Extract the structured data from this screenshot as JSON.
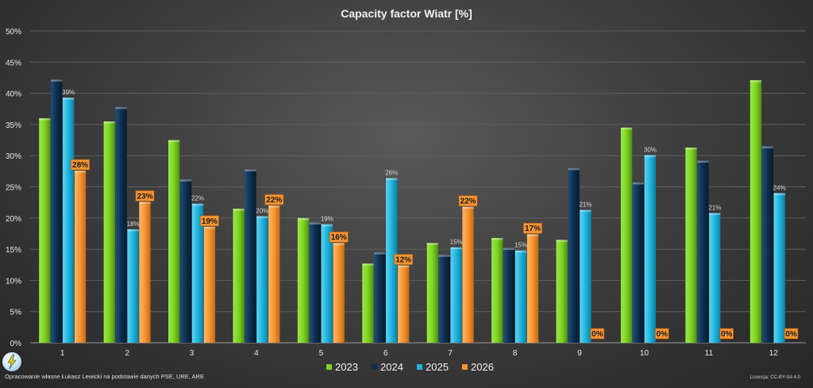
{
  "chart_data": {
    "type": "bar",
    "title": "Capacity factor Wiatr [%]",
    "categories": [
      "1",
      "2",
      "3",
      "4",
      "5",
      "6",
      "7",
      "8",
      "9",
      "10",
      "11",
      "12"
    ],
    "ylim": [
      0,
      50
    ],
    "y_ticks": [
      "0%",
      "5%",
      "10%",
      "15%",
      "20%",
      "25%",
      "30%",
      "35%",
      "40%",
      "45%",
      "50%"
    ],
    "grid": true,
    "legend_position": "bottom",
    "series": [
      {
        "name": "2023",
        "color": "#7ed321",
        "values": [
          36.0,
          35.5,
          32.5,
          21.5,
          20.0,
          12.7,
          16.0,
          16.8,
          16.5,
          34.5,
          31.3,
          42.1
        ]
      },
      {
        "name": "2024",
        "color": "#0e2f4f",
        "values": [
          42.2,
          37.8,
          26.2,
          27.8,
          19.3,
          14.5,
          14.1,
          15.2,
          28.0,
          25.7,
          29.2,
          31.5
        ]
      },
      {
        "name": "2025",
        "color": "#1fb4dc",
        "values": [
          39.3,
          18.2,
          22.3,
          20.3,
          19.0,
          26.4,
          15.3,
          14.8,
          21.3,
          30.1,
          20.8,
          24.0
        ],
        "labels": [
          "39%",
          "18%",
          "22%",
          "20%",
          "19%",
          "26%",
          "15%",
          "15%",
          "21%",
          "30%",
          "21%",
          "24%"
        ]
      },
      {
        "name": "2026",
        "color": "#f79433",
        "values": [
          27.6,
          22.6,
          18.6,
          22.0,
          16.0,
          12.4,
          21.8,
          17.4,
          0,
          0,
          0,
          0
        ],
        "labels": [
          "28%",
          "23%",
          "19%",
          "22%",
          "16%",
          "12%",
          "22%",
          "17%",
          "0%",
          "0%",
          "0%",
          "0%"
        ]
      }
    ]
  },
  "footer": {
    "source": "Opracowanie własne Łukasz Lewicki na podstawie danych PSE, URE, ARE",
    "license": "Licencja: CC-BY-SA 4.0"
  },
  "logo_icon": "lightning-logo-icon"
}
